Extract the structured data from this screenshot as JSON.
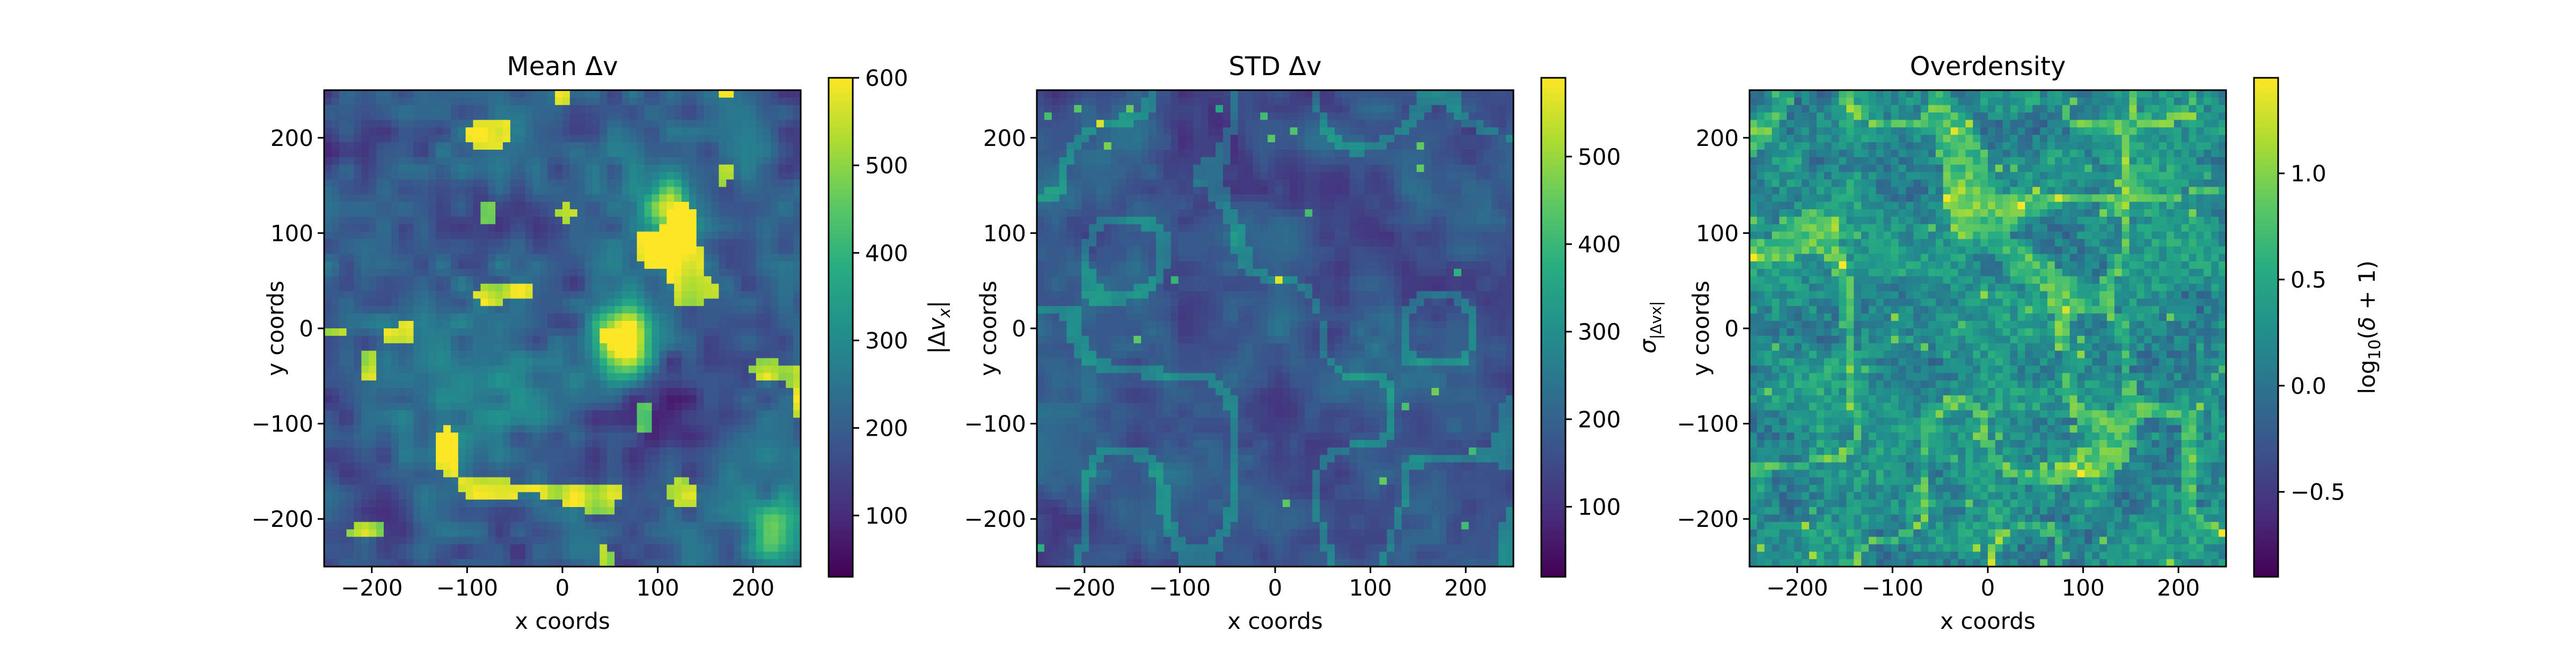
{
  "chart_data": [
    {
      "type": "heatmap",
      "title": "Mean Δv",
      "xlabel": "x coords",
      "ylabel": "y coords",
      "colorbar_label": "|Δv_x|",
      "xlim": [
        -250,
        250
      ],
      "ylim": [
        -250,
        250
      ],
      "x_ticks": [
        -200,
        -100,
        0,
        100,
        200
      ],
      "y_ticks": [
        -200,
        -100,
        0,
        100,
        200
      ],
      "x_tick_labels": [
        "−200",
        "−100",
        "0",
        "100",
        "200"
      ],
      "y_tick_labels": [
        "−200",
        "−100",
        "0",
        "100",
        "200"
      ],
      "colormap": "viridis",
      "color_range": [
        30,
        600
      ],
      "colorbar_ticks": [
        100,
        200,
        300,
        400,
        500,
        600
      ],
      "colorbar_tick_labels": [
        "100",
        "200",
        "300",
        "400",
        "500",
        "600"
      ],
      "grid": false,
      "data_pattern": "patchy field, mostly low values with scattered bright clumps; largest high-value cluster near (60, 0) and (110, 130)"
    },
    {
      "type": "heatmap",
      "title": "STD Δv",
      "xlabel": "x coords",
      "ylabel": "y coords",
      "colorbar_label": "σ_|Δvx|",
      "xlim": [
        -250,
        250
      ],
      "ylim": [
        -250,
        250
      ],
      "x_ticks": [
        -200,
        -100,
        0,
        100,
        200
      ],
      "y_ticks": [
        -200,
        -100,
        0,
        100,
        200
      ],
      "x_tick_labels": [
        "−200",
        "−100",
        "0",
        "100",
        "200"
      ],
      "y_tick_labels": [
        "−200",
        "−100",
        "0",
        "100",
        "200"
      ],
      "colormap": "viridis",
      "color_range": [
        20,
        590
      ],
      "colorbar_ticks": [
        100,
        200,
        300,
        400,
        500
      ],
      "colorbar_tick_labels": [
        "100",
        "200",
        "300",
        "400",
        "500"
      ],
      "grid": false,
      "data_pattern": "predominantly low values (dark purple) with faint filamentary structure and a few isolated bright cells"
    },
    {
      "type": "heatmap",
      "title": "Overdensity",
      "xlabel": "x coords",
      "ylabel": "y coords",
      "colorbar_label": "log10(δ+1)",
      "xlim": [
        -250,
        250
      ],
      "ylim": [
        -250,
        250
      ],
      "x_ticks": [
        -200,
        -100,
        0,
        100,
        200
      ],
      "y_ticks": [
        -200,
        -100,
        0,
        100,
        200
      ],
      "x_tick_labels": [
        "−200",
        "−100",
        "0",
        "100",
        "200"
      ],
      "y_tick_labels": [
        "−200",
        "−100",
        "0",
        "100",
        "200"
      ],
      "colormap": "viridis",
      "color_range": [
        -0.9,
        1.45
      ],
      "colorbar_ticks": [
        -0.5,
        0.0,
        0.5,
        1.0
      ],
      "colorbar_tick_labels": [
        "−0.5",
        "0.0",
        "0.5",
        "1.0"
      ],
      "grid": false,
      "data_pattern": "mid-range noisy field (teal/green) with web-like brighter filaments"
    }
  ]
}
